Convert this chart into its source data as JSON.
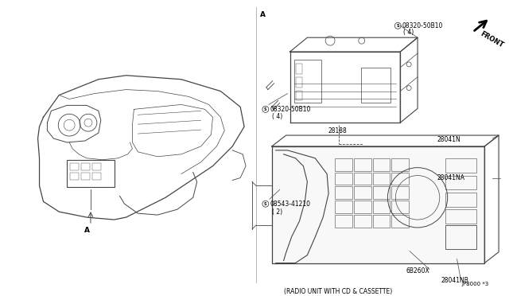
{
  "bg_color": "#ffffff",
  "line_color": "#444444",
  "fig_width": 6.4,
  "fig_height": 3.72,
  "dpi": 100,
  "labels": {
    "A_left": "A",
    "A_right": "A",
    "front": "FRONT",
    "part_08320_top": "08320-50B10",
    "part_08320_top_qty": "( 4)",
    "part_08320_bot": "08320-50B10",
    "part_08320_bot_qty": "( 4)",
    "part_28188": "28188",
    "part_28041N": "28041N",
    "part_28041NA": "28041NA",
    "part_08543": "08543-41210",
    "part_08543_qty": "( 2)",
    "part_68260X": "6B260X",
    "part_28041NB": "28041NB",
    "caption": "(RADIO UNIT WITH CD & CASSETTE)",
    "jp_code": "JP8000 *3"
  }
}
